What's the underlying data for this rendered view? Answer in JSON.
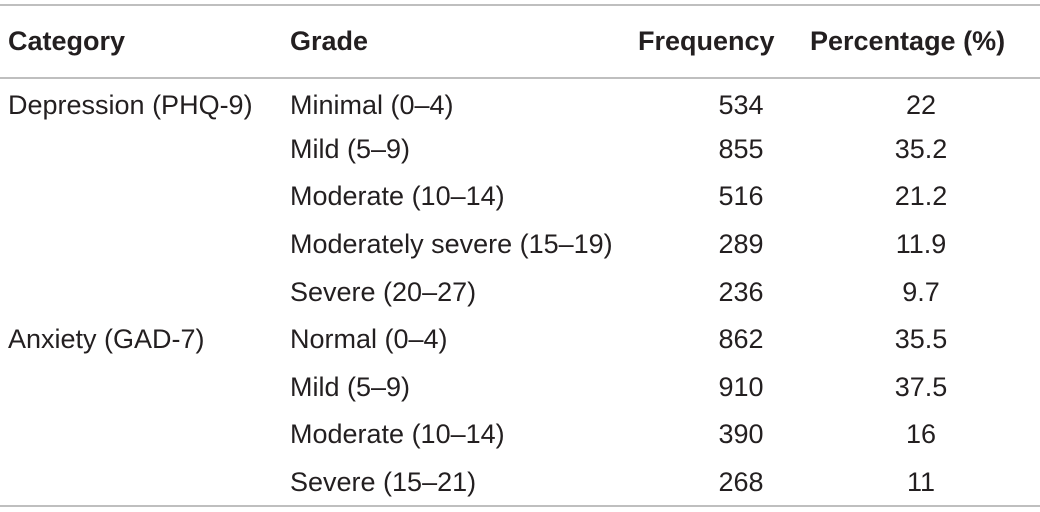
{
  "table": {
    "headers": {
      "category": "Category",
      "grade": "Grade",
      "frequency": "Frequency",
      "percentage": "Percentage (%)"
    },
    "rows": [
      {
        "category": "Depression (PHQ-9)",
        "grade": "Minimal (0–4)",
        "frequency": "534",
        "percentage": "22"
      },
      {
        "category": "",
        "grade": "Mild (5–9)",
        "frequency": "855",
        "percentage": "35.2"
      },
      {
        "category": "",
        "grade": "Moderate (10–14)",
        "frequency": "516",
        "percentage": "21.2"
      },
      {
        "category": "",
        "grade": "Moderately severe (15–19)",
        "frequency": "289",
        "percentage": "11.9"
      },
      {
        "category": "",
        "grade": "Severe (20–27)",
        "frequency": "236",
        "percentage": "9.7"
      },
      {
        "category": "Anxiety (GAD-7)",
        "grade": "Normal (0–4)",
        "frequency": "862",
        "percentage": "35.5"
      },
      {
        "category": "",
        "grade": "Mild (5–9)",
        "frequency": "910",
        "percentage": "37.5"
      },
      {
        "category": "",
        "grade": "Moderate (10–14)",
        "frequency": "390",
        "percentage": "16"
      },
      {
        "category": "",
        "grade": "Severe (15–21)",
        "frequency": "268",
        "percentage": "11"
      }
    ]
  }
}
